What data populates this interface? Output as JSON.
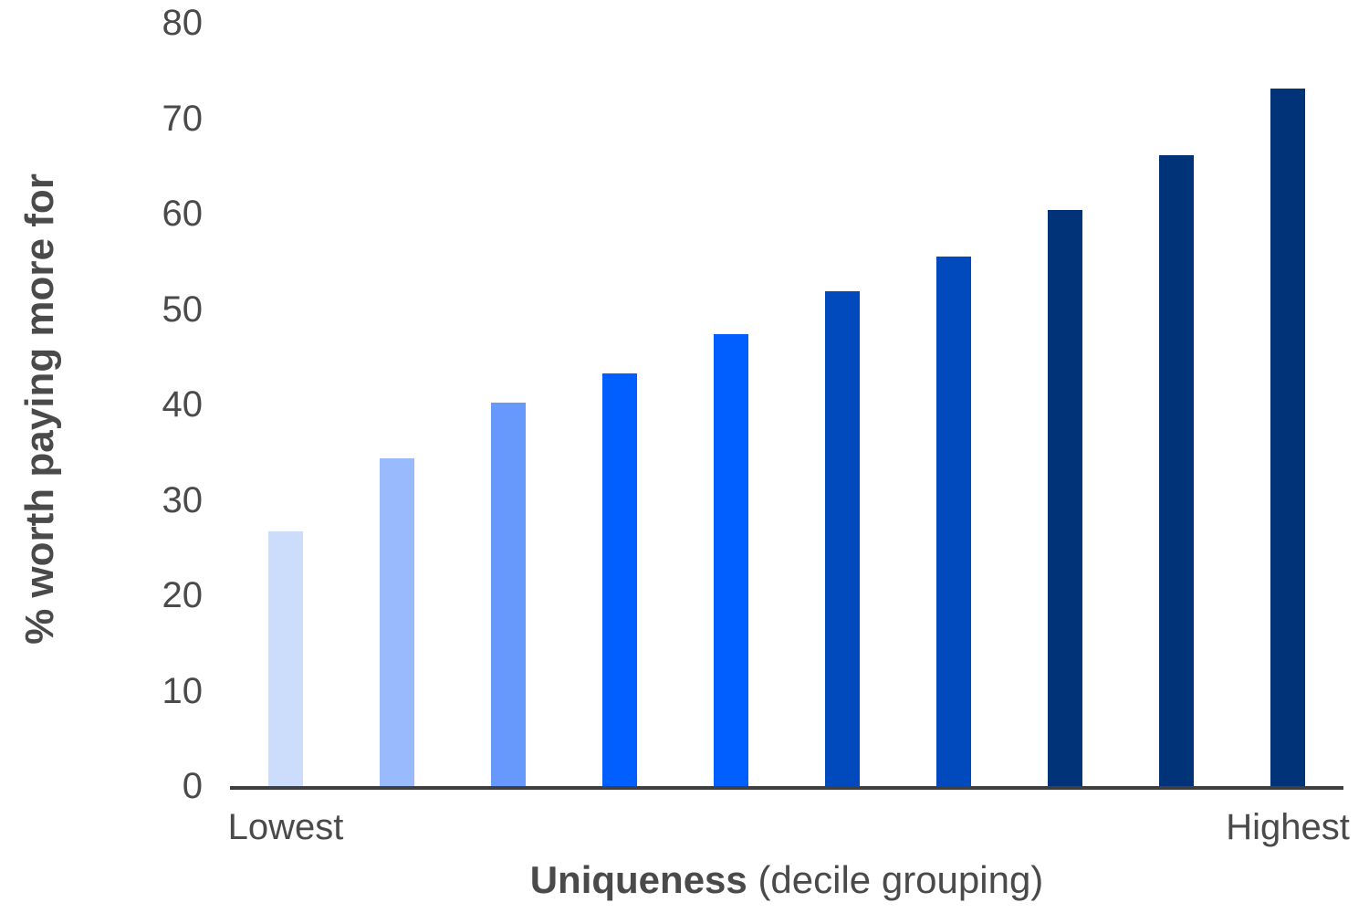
{
  "chart_data": {
    "type": "bar",
    "title": "",
    "ylabel": "% worth paying more for",
    "xlabel_bold": "Uniqueness",
    "xlabel_detail": " (decile grouping)",
    "end_labels": {
      "left": "Lowest",
      "right": "Highest"
    },
    "categories": [
      "Lowest",
      "",
      "",
      "",
      "",
      "",
      "",
      "",
      "",
      "Highest"
    ],
    "values": [
      26.7,
      34.4,
      40.2,
      43.3,
      47.4,
      51.9,
      55.5,
      60.4,
      66.1,
      73.1
    ],
    "ylim": [
      0,
      80
    ],
    "yticks": [
      0,
      10,
      20,
      30,
      40,
      50,
      60,
      70,
      80
    ],
    "bar_colors": [
      "#ccddfb",
      "#99bafc",
      "#6699fb",
      "#005ffe",
      "#005ffe",
      "#004abd",
      "#004abd",
      "#003378",
      "#003378",
      "#003378"
    ],
    "grid": false,
    "legend_position": "none",
    "axis_color": "#3f3f3f",
    "text_color": "#4a4a4a"
  }
}
